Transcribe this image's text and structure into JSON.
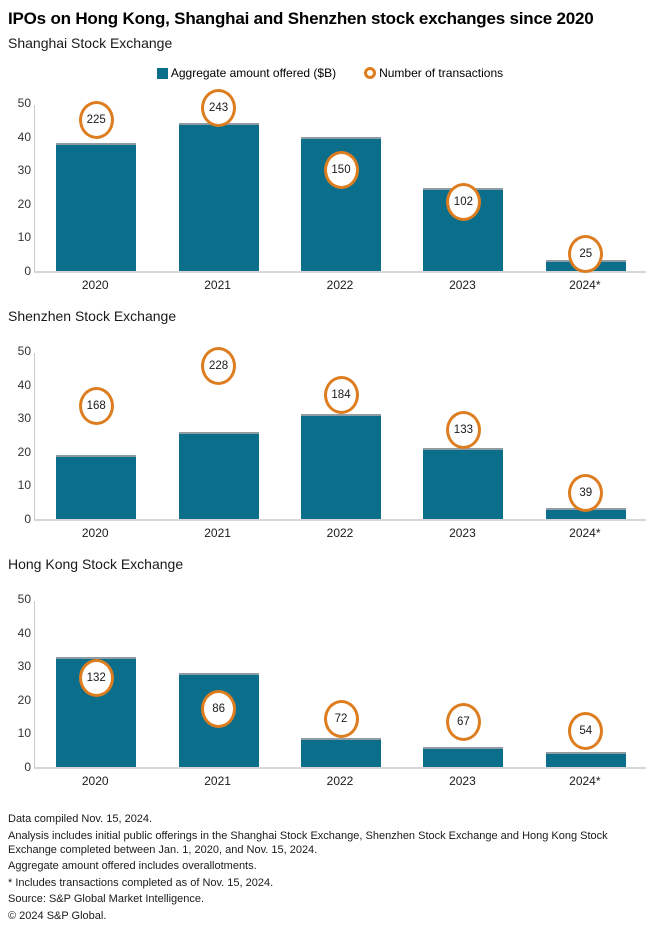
{
  "title": "IPOs on Hong Kong, Shanghai and Shenzhen stock exchanges since 2020",
  "legend": {
    "bar_label": "Aggregate amount offered ($B)",
    "circle_label": "Number of transactions"
  },
  "colors": {
    "bar": "#0b6e8a",
    "bar_top_edge": "#8f9ca3",
    "transaction_ring": "#dd7d20",
    "axis_line": "#c9c9c9"
  },
  "chart_data": [
    {
      "type": "bar",
      "title": "Shanghai Stock Exchange",
      "categories": [
        "2020",
        "2021",
        "2022",
        "2023",
        "2024*"
      ],
      "series": [
        {
          "name": "Aggregate amount offered ($B)",
          "type": "bar",
          "axis": "primary",
          "values": [
            38,
            44,
            40,
            24.7,
            3.4
          ]
        },
        {
          "name": "Number of transactions",
          "type": "point",
          "axis": "secondary",
          "values": [
            225,
            243,
            150,
            102,
            25
          ]
        }
      ],
      "xlabel": "",
      "ylabel": "",
      "ylim": [
        0,
        50
      ],
      "yticks": [
        0,
        10,
        20,
        30,
        40,
        50
      ],
      "secondary_ylim": [
        0,
        250
      ],
      "grid": false,
      "legend_position": "top-center"
    },
    {
      "type": "bar",
      "title": "Shenzhen Stock Exchange",
      "categories": [
        "2020",
        "2021",
        "2022",
        "2023",
        "2024*"
      ],
      "series": [
        {
          "name": "Aggregate amount offered ($B)",
          "type": "bar",
          "axis": "primary",
          "values": [
            19,
            26,
            31.3,
            21,
            3.2
          ]
        },
        {
          "name": "Number of transactions",
          "type": "point",
          "axis": "secondary",
          "values": [
            168,
            228,
            184,
            133,
            39
          ]
        }
      ],
      "xlabel": "",
      "ylabel": "",
      "ylim": [
        0,
        50
      ],
      "yticks": [
        0,
        10,
        20,
        30,
        40,
        50
      ],
      "secondary_ylim": [
        0,
        250
      ],
      "grid": false,
      "legend_position": "none"
    },
    {
      "type": "bar",
      "title": "Hong Kong Stock Exchange",
      "categories": [
        "2020",
        "2021",
        "2022",
        "2023",
        "2024*"
      ],
      "series": [
        {
          "name": "Aggregate amount offered ($B)",
          "type": "bar",
          "axis": "primary",
          "values": [
            32.6,
            28,
            8.5,
            6,
            4.4
          ]
        },
        {
          "name": "Number of transactions",
          "type": "point",
          "axis": "secondary",
          "values": [
            132,
            86,
            72,
            67,
            54
          ]
        }
      ],
      "xlabel": "",
      "ylabel": "",
      "ylim": [
        0,
        50
      ],
      "yticks": [
        0,
        10,
        20,
        30,
        40,
        50
      ],
      "secondary_ylim": [
        0,
        250
      ],
      "grid": false,
      "legend_position": "none"
    }
  ],
  "footnotes": [
    "Data compiled Nov. 15, 2024.",
    "Analysis includes initial public offerings in the Shanghai Stock Exchange, Shenzhen Stock Exchange and Hong Kong Stock Exchange completed between Jan. 1, 2020, and Nov. 15, 2024.",
    "Aggregate amount offered includes overallotments.",
    "* Includes transactions completed as of Nov. 15, 2024.",
    "Source: S&P Global Market Intelligence.",
    "© 2024 S&P Global."
  ]
}
